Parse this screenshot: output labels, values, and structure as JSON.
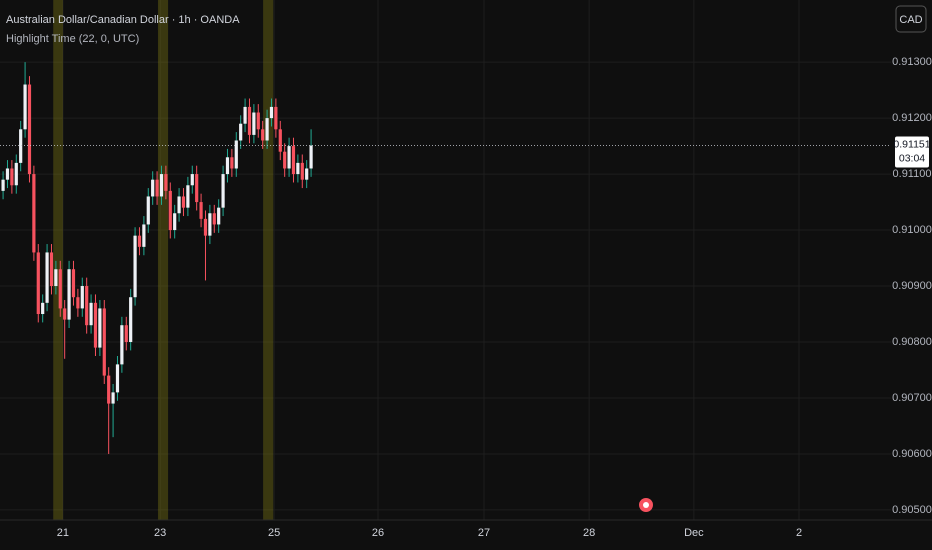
{
  "chart_data": {
    "type": "candlestick",
    "title": "Australian Dollar/Canadian Dollar · 1h · OANDA",
    "indicator": "Highlight Time (22, 0, UTC)",
    "currency": "CAD",
    "countdown": "03:04",
    "x": [
      0,
      1,
      2,
      3,
      4,
      5,
      6,
      7,
      8,
      9,
      10,
      11,
      12,
      13,
      14,
      15,
      16,
      17,
      18,
      19,
      20,
      21,
      22,
      23,
      24,
      25,
      26,
      27,
      28,
      29,
      30,
      31,
      32,
      33,
      34,
      35,
      36,
      37,
      38,
      39,
      40,
      41,
      42,
      43,
      44,
      45,
      46,
      47,
      48,
      49,
      50,
      51,
      52,
      53,
      54,
      55,
      56,
      57,
      58,
      59,
      60,
      61,
      62,
      63,
      64,
      65,
      66,
      67,
      68,
      69,
      70
    ],
    "open": [
      0.9107,
      0.9109,
      0.9111,
      0.9108,
      0.9112,
      0.9118,
      0.9126,
      0.911,
      0.9096,
      0.9085,
      0.9087,
      0.9096,
      0.909,
      0.9093,
      0.9086,
      0.9084,
      0.9093,
      0.9088,
      0.9086,
      0.909,
      0.9083,
      0.9087,
      0.9079,
      0.9086,
      0.9074,
      0.9069,
      0.9071,
      0.9076,
      0.9083,
      0.908,
      0.9088,
      0.9099,
      0.9097,
      0.9101,
      0.9106,
      0.9109,
      0.9106,
      0.911,
      0.9107,
      0.91,
      0.9103,
      0.9106,
      0.9104,
      0.9108,
      0.911,
      0.9105,
      0.9102,
      0.9099,
      0.9103,
      0.9101,
      0.9104,
      0.911,
      0.9113,
      0.9111,
      0.9116,
      0.9119,
      0.9122,
      0.9117,
      0.9121,
      0.9118,
      0.9116,
      0.912,
      0.9122,
      0.9118,
      0.9114,
      0.9111,
      0.9115,
      0.911,
      0.9112,
      0.9109,
      0.9111
    ],
    "high": [
      0.91105,
      0.91125,
      0.91125,
      0.91135,
      0.91195,
      0.913,
      0.91275,
      0.91115,
      0.90975,
      0.90885,
      0.90975,
      0.90975,
      0.90945,
      0.90945,
      0.90875,
      0.90945,
      0.90945,
      0.90895,
      0.90915,
      0.90915,
      0.90885,
      0.90885,
      0.90875,
      0.90875,
      0.90755,
      0.90725,
      0.90775,
      0.90845,
      0.90845,
      0.90895,
      0.91005,
      0.91005,
      0.91025,
      0.91075,
      0.91105,
      0.91105,
      0.91115,
      0.91115,
      0.91085,
      0.91045,
      0.91075,
      0.91075,
      0.91095,
      0.91115,
      0.91115,
      0.91065,
      0.91035,
      0.91045,
      0.91045,
      0.91055,
      0.91115,
      0.91145,
      0.91145,
      0.91175,
      0.91205,
      0.91235,
      0.91235,
      0.91225,
      0.91225,
      0.91195,
      0.91215,
      0.91235,
      0.91235,
      0.91195,
      0.91155,
      0.91165,
      0.91165,
      0.91135,
      0.91135,
      0.91125,
      0.9118
    ],
    "low": [
      0.91055,
      0.91075,
      0.91065,
      0.91065,
      0.91105,
      0.91165,
      0.91085,
      0.90945,
      0.90835,
      0.90835,
      0.90855,
      0.90885,
      0.90885,
      0.90845,
      0.9077,
      0.90825,
      0.90865,
      0.90845,
      0.90845,
      0.90815,
      0.90815,
      0.90775,
      0.90775,
      0.90725,
      0.906,
      0.9063,
      0.90695,
      0.90745,
      0.90785,
      0.90785,
      0.90865,
      0.90955,
      0.90955,
      0.90995,
      0.91045,
      0.91045,
      0.91045,
      0.91055,
      0.90985,
      0.90985,
      0.91015,
      0.91025,
      0.91025,
      0.91065,
      0.91035,
      0.91005,
      0.9091,
      0.90975,
      0.90995,
      0.90995,
      0.91025,
      0.91085,
      0.91095,
      0.91095,
      0.91145,
      0.91175,
      0.91155,
      0.91155,
      0.91165,
      0.91145,
      0.91145,
      0.91185,
      0.91165,
      0.91125,
      0.91095,
      0.91095,
      0.91085,
      0.91085,
      0.91075,
      0.91075,
      0.91095
    ],
    "close": [
      0.9109,
      0.9111,
      0.9108,
      0.9112,
      0.9118,
      0.9126,
      0.911,
      0.9096,
      0.9085,
      0.9087,
      0.9096,
      0.909,
      0.9093,
      0.9086,
      0.9084,
      0.9093,
      0.9088,
      0.9086,
      0.909,
      0.9083,
      0.9087,
      0.9079,
      0.9086,
      0.9074,
      0.9069,
      0.9071,
      0.9076,
      0.9083,
      0.908,
      0.9088,
      0.9099,
      0.9097,
      0.9101,
      0.9106,
      0.9109,
      0.9106,
      0.911,
      0.9107,
      0.91,
      0.9103,
      0.9106,
      0.9104,
      0.9108,
      0.911,
      0.9105,
      0.9102,
      0.9099,
      0.9103,
      0.9101,
      0.9104,
      0.911,
      0.9113,
      0.9111,
      0.9116,
      0.9119,
      0.9122,
      0.9117,
      0.9121,
      0.9118,
      0.9116,
      0.912,
      0.9122,
      0.9118,
      0.9114,
      0.9111,
      0.9115,
      0.911,
      0.9112,
      0.9109,
      0.9111,
      0.91151
    ],
    "highlights": [
      {
        "start": 11.4,
        "end": 13.6
      },
      {
        "start": 35.2,
        "end": 37.5
      },
      {
        "start": 59.1,
        "end": 61.4
      }
    ],
    "highlight_color": "rgba(120,115,20,0.42)",
    "up_color": "#eef1f6",
    "up_wick_color": "#22ab94",
    "down_color": "#f7525f",
    "xlim": [
      -0.7,
      201.8
    ],
    "xticks": [
      {
        "value": 13.6,
        "label": "21"
      },
      {
        "value": 35.7,
        "label": "23"
      },
      {
        "value": 61.6,
        "label": "25"
      },
      {
        "value": 85.2,
        "label": "26"
      },
      {
        "value": 109.3,
        "label": "27"
      },
      {
        "value": 133.2,
        "label": "28"
      },
      {
        "value": 157,
        "label": "Dec"
      },
      {
        "value": 180.9,
        "label": "2"
      }
    ],
    "ylim": [
      0.90482,
      0.91411
    ],
    "yticks": [
      {
        "value": 0.913,
        "label": "0.91300"
      },
      {
        "value": 0.912,
        "label": "0.91200"
      },
      {
        "value": 0.911,
        "label": "0.91100"
      },
      {
        "value": 0.91,
        "label": "0.91000"
      },
      {
        "value": 0.909,
        "label": "0.90900"
      },
      {
        "value": 0.908,
        "label": "0.90800"
      },
      {
        "value": 0.907,
        "label": "0.90700"
      },
      {
        "value": 0.906,
        "label": "0.90600"
      },
      {
        "value": 0.905,
        "label": "0.90500"
      }
    ],
    "grid": true
  }
}
